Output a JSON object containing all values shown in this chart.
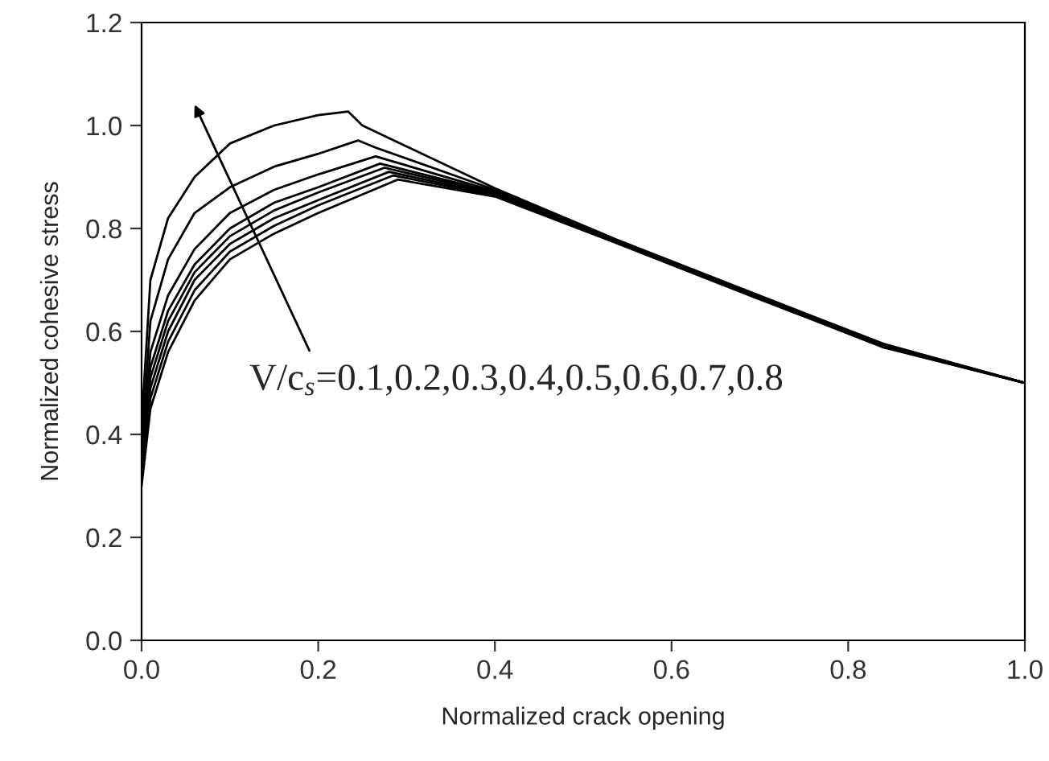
{
  "chart_data": {
    "type": "line",
    "xlabel": "Normalized crack opening",
    "ylabel": "Normalized cohesive stress",
    "xlim": [
      0.0,
      1.0
    ],
    "ylim": [
      0.0,
      1.2
    ],
    "xticks": [
      {
        "value": 0,
        "label": "0.0"
      },
      0.2,
      0.4,
      0.6,
      0.8,
      {
        "value": 1,
        "label": "1.0"
      }
    ],
    "yticks": [
      {
        "value": 0,
        "label": "0.0"
      },
      0.2,
      0.4,
      0.6,
      0.8,
      {
        "value": 1,
        "label": "1.0"
      },
      1.2
    ],
    "grid": false,
    "marker": "none",
    "line_style": "solid",
    "series": [
      {
        "color": "#000000",
        "x": [
          0,
          0.01,
          0.03,
          0.06,
          0.1,
          0.15,
          0.2,
          0.29,
          0.4,
          0.537,
          0.69,
          0.84,
          1.0
        ],
        "values": [
          0.3,
          0.45,
          0.56,
          0.66,
          0.74,
          0.79,
          0.83,
          0.895,
          0.862,
          0.772,
          0.669,
          0.569,
          0.5
        ]
      },
      {
        "color": "#000000",
        "x": [
          0,
          0.01,
          0.03,
          0.06,
          0.1,
          0.15,
          0.2,
          0.285,
          0.4,
          0.537,
          0.69,
          0.84,
          1.0
        ],
        "values": [
          0.31,
          0.47,
          0.58,
          0.68,
          0.755,
          0.805,
          0.845,
          0.903,
          0.864,
          0.773,
          0.67,
          0.57,
          0.5
        ]
      },
      {
        "color": "#000000",
        "x": [
          0,
          0.01,
          0.03,
          0.06,
          0.1,
          0.15,
          0.2,
          0.28,
          0.4,
          0.537,
          0.69,
          0.84,
          1.0
        ],
        "values": [
          0.32,
          0.49,
          0.6,
          0.7,
          0.77,
          0.82,
          0.855,
          0.91,
          0.866,
          0.774,
          0.671,
          0.571,
          0.5
        ]
      },
      {
        "color": "#000000",
        "x": [
          0,
          0.01,
          0.03,
          0.06,
          0.1,
          0.15,
          0.2,
          0.275,
          0.4,
          0.537,
          0.69,
          0.84,
          1.0
        ],
        "values": [
          0.33,
          0.51,
          0.62,
          0.715,
          0.785,
          0.835,
          0.87,
          0.918,
          0.868,
          0.775,
          0.672,
          0.572,
          0.5
        ]
      },
      {
        "color": "#000000",
        "x": [
          0,
          0.01,
          0.03,
          0.06,
          0.1,
          0.15,
          0.2,
          0.27,
          0.4,
          0.537,
          0.69,
          0.84,
          1.0
        ],
        "values": [
          0.34,
          0.53,
          0.64,
          0.73,
          0.8,
          0.85,
          0.88,
          0.926,
          0.87,
          0.776,
          0.673,
          0.573,
          0.5
        ]
      },
      {
        "color": "#000000",
        "x": [
          0,
          0.01,
          0.03,
          0.06,
          0.1,
          0.15,
          0.2,
          0.265,
          0.4,
          0.537,
          0.69,
          0.84,
          1.0
        ],
        "values": [
          0.36,
          0.56,
          0.67,
          0.76,
          0.83,
          0.875,
          0.905,
          0.94,
          0.872,
          0.777,
          0.674,
          0.574,
          0.5
        ]
      },
      {
        "color": "#000000",
        "x": [
          0,
          0.01,
          0.03,
          0.06,
          0.1,
          0.15,
          0.2,
          0.245,
          0.265,
          0.4,
          0.537,
          0.69,
          0.84,
          1.0
        ],
        "values": [
          0.38,
          0.62,
          0.74,
          0.83,
          0.88,
          0.92,
          0.945,
          0.971,
          0.957,
          0.875,
          0.778,
          0.675,
          0.575,
          0.5
        ]
      },
      {
        "color": "#000000",
        "x": [
          0,
          0.01,
          0.03,
          0.06,
          0.1,
          0.15,
          0.2,
          0.234,
          0.25,
          0.4,
          0.537,
          0.69,
          0.84,
          1.0
        ],
        "values": [
          0.42,
          0.7,
          0.82,
          0.9,
          0.965,
          1.0,
          1.02,
          1.027,
          1.0,
          0.878,
          0.779,
          0.676,
          0.576,
          0.5
        ]
      }
    ],
    "annotations": [
      "V/c$_{s}$=0.1,0.2,0.3,0.4,0.5,0.6,0.7,0.8"
    ]
  }
}
